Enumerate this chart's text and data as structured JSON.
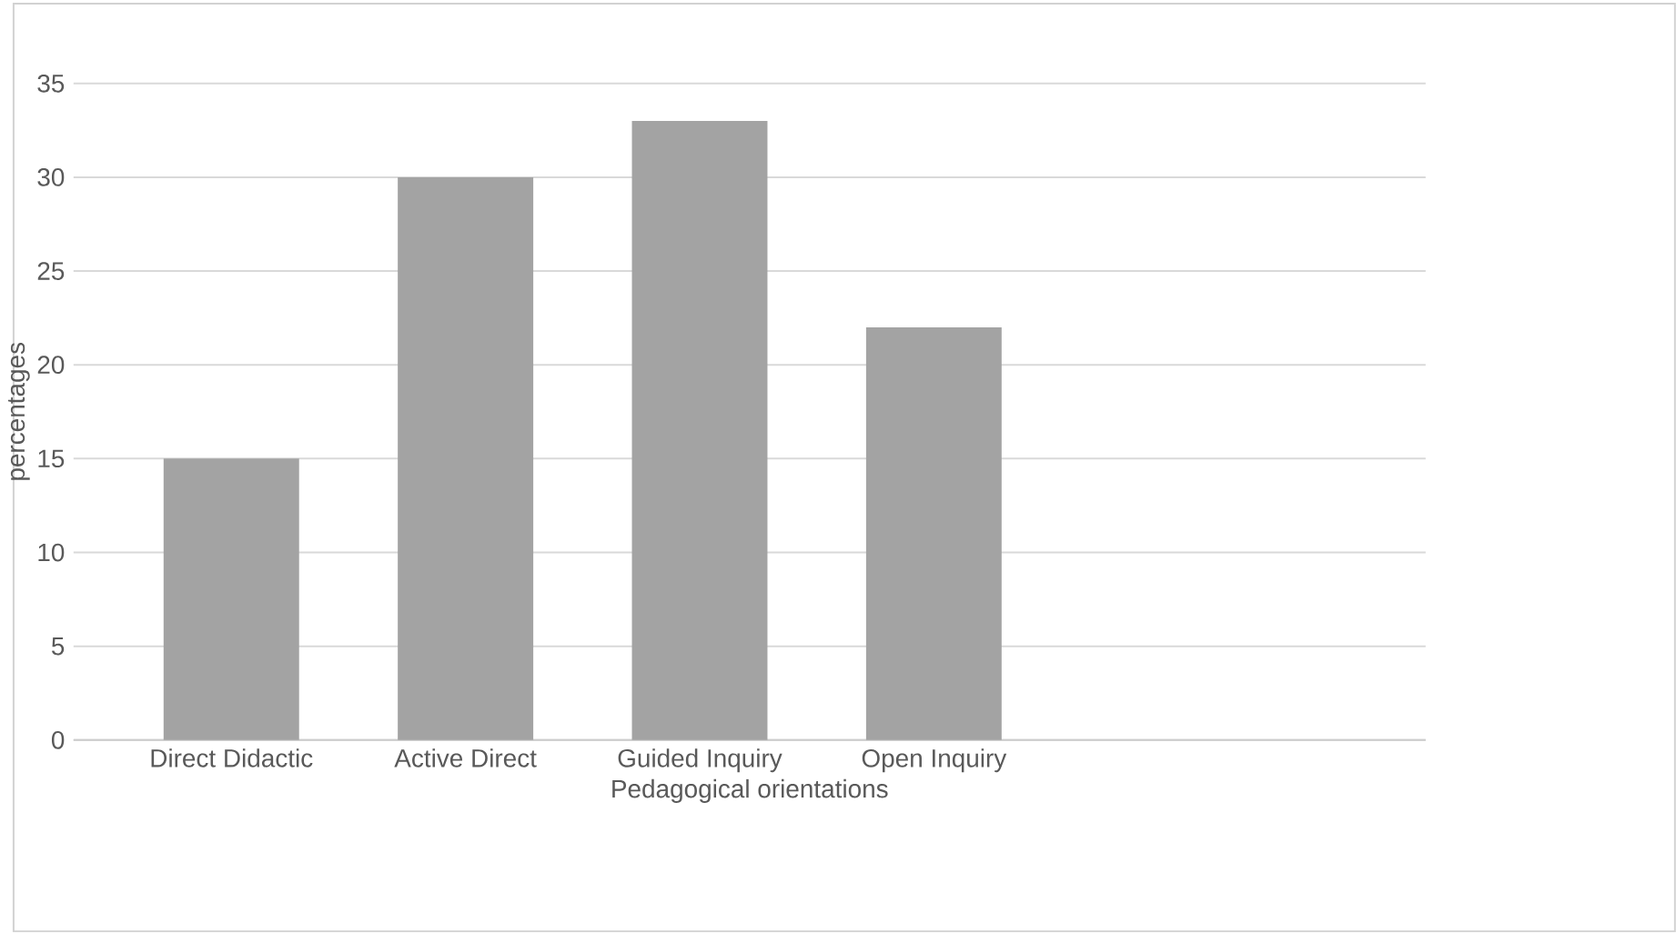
{
  "chart_data": {
    "type": "bar",
    "xlabel": "Pedagogical orientations",
    "ylabel": "percentages",
    "categories": [
      "Direct Didactic",
      "Active Direct",
      "Guided Inquiry",
      "Open Inquiry"
    ],
    "values": [
      15,
      30,
      33,
      22
    ],
    "color": "#a3a3a3",
    "ylim": [
      0,
      35
    ],
    "yticks": [
      0,
      5,
      10,
      15,
      20,
      25,
      30,
      35
    ],
    "grid": "y"
  }
}
